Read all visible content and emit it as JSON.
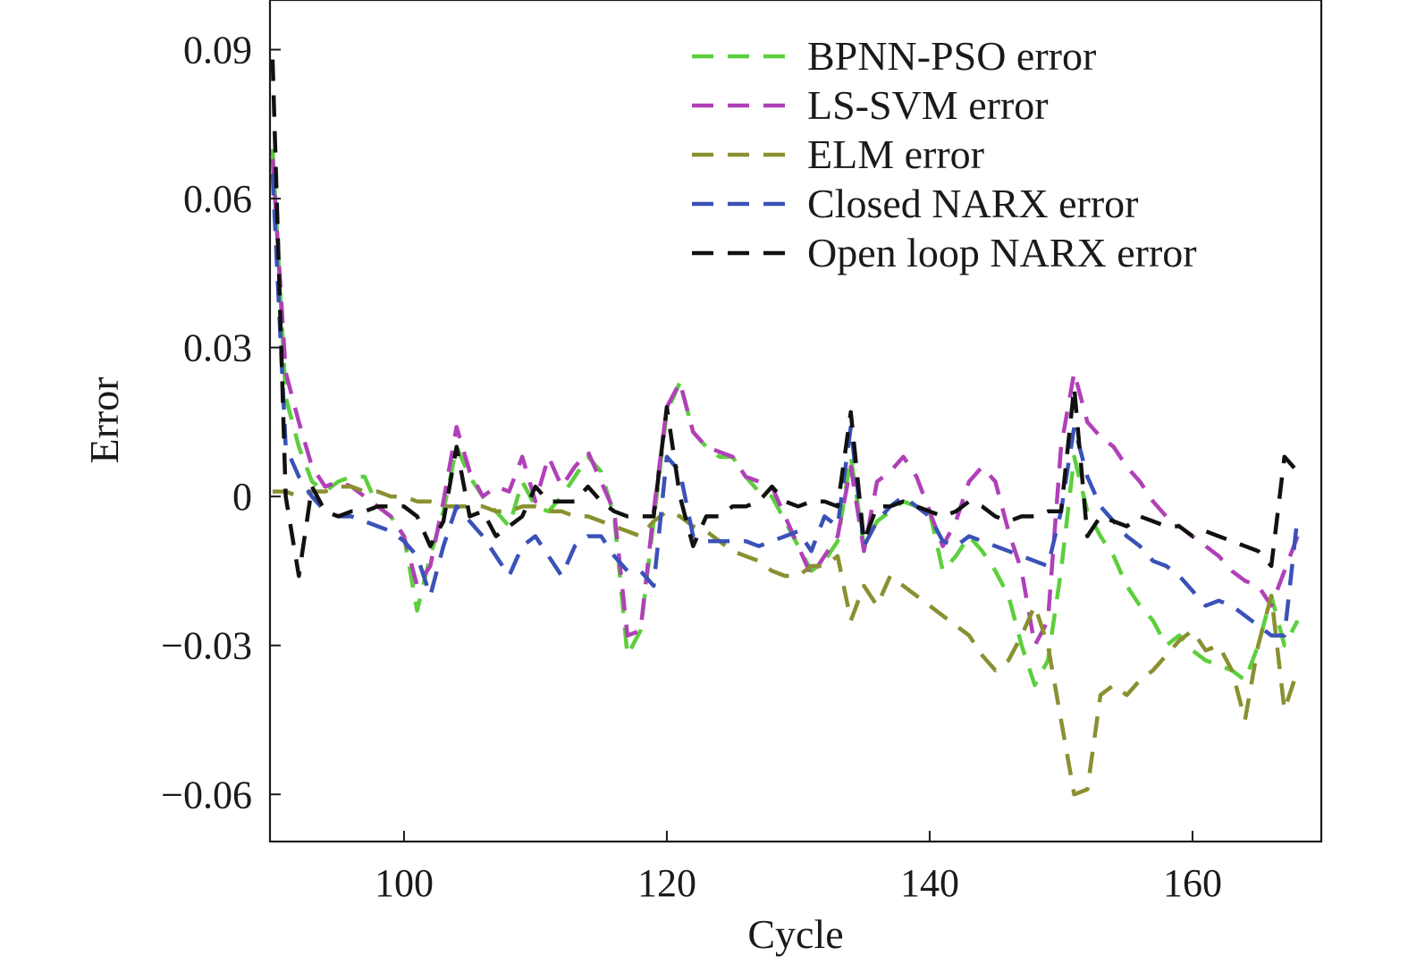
{
  "chart_data": {
    "type": "line",
    "title": "",
    "xlabel": "Cycle",
    "ylabel": "Error",
    "xlim": [
      89.8,
      169.8
    ],
    "ylim": [
      -0.0695,
      0.1
    ],
    "xticks": [
      100,
      120,
      140,
      160
    ],
    "xtick_labels": [
      "100",
      "120",
      "140",
      "160"
    ],
    "yticks": [
      0.09,
      0.06,
      0.03,
      0,
      -0.03,
      -0.06
    ],
    "ytick_labels": [
      "0.09",
      "0.06",
      "0.03",
      "0",
      "−0.03",
      "−0.06"
    ],
    "grid": false,
    "legend": "top-right",
    "line_style": "dashed",
    "x": [
      90,
      91,
      92,
      93,
      94,
      95,
      96,
      97,
      98,
      99,
      100,
      101,
      102,
      103,
      104,
      105,
      106,
      107,
      108,
      109,
      110,
      111,
      112,
      113,
      114,
      115,
      116,
      117,
      118,
      119,
      120,
      121,
      122,
      123,
      124,
      125,
      126,
      127,
      128,
      129,
      130,
      131,
      132,
      133,
      134,
      135,
      136,
      137,
      138,
      139,
      140,
      141,
      142,
      143,
      144,
      145,
      146,
      147,
      148,
      149,
      150,
      151,
      152,
      153,
      154,
      155,
      156,
      157,
      158,
      159,
      160,
      161,
      162,
      163,
      164,
      165,
      166,
      167,
      168
    ],
    "series": [
      {
        "name": "BPNN-PSO error",
        "color": "#5ccf3c",
        "values": [
          0.07,
          0.02,
          0.01,
          0.003,
          0.001,
          0.003,
          0.004,
          0.004,
          -0.002,
          -0.004,
          -0.008,
          -0.023,
          -0.012,
          -0.003,
          0.01,
          0.004,
          0.0,
          -0.003,
          -0.006,
          0.003,
          -0.002,
          -0.003,
          0.0,
          0.004,
          0.008,
          0.005,
          -0.004,
          -0.032,
          -0.027,
          -0.005,
          0.017,
          0.023,
          0.013,
          0.01,
          0.008,
          0.008,
          0.004,
          0.001,
          0.0,
          -0.005,
          -0.01,
          -0.015,
          -0.013,
          -0.009,
          0.008,
          -0.01,
          -0.005,
          -0.003,
          -0.001,
          -0.002,
          -0.003,
          -0.015,
          -0.012,
          -0.008,
          -0.011,
          -0.015,
          -0.02,
          -0.03,
          -0.038,
          -0.033,
          -0.015,
          0.008,
          -0.003,
          -0.008,
          -0.012,
          -0.018,
          -0.022,
          -0.025,
          -0.03,
          -0.028,
          -0.031,
          -0.033,
          -0.034,
          -0.035,
          -0.037,
          -0.03,
          -0.02,
          -0.03,
          -0.025
        ]
      },
      {
        "name": "LS-SVM error",
        "color": "#b040b8",
        "values": [
          0.068,
          0.025,
          0.015,
          0.006,
          0.002,
          0.003,
          0.002,
          0.0,
          -0.002,
          -0.004,
          -0.008,
          -0.018,
          -0.014,
          -0.001,
          0.014,
          0.005,
          0.0,
          0.002,
          0.001,
          0.008,
          -0.001,
          0.008,
          0.002,
          0.006,
          0.009,
          0.003,
          -0.003,
          -0.028,
          -0.027,
          -0.003,
          0.018,
          0.023,
          0.013,
          0.01,
          0.009,
          0.008,
          0.004,
          0.003,
          0.002,
          -0.004,
          -0.01,
          -0.016,
          -0.012,
          -0.008,
          0.006,
          -0.011,
          0.003,
          0.005,
          0.008,
          0.004,
          -0.003,
          -0.01,
          -0.005,
          0.003,
          0.006,
          0.003,
          -0.007,
          -0.015,
          -0.03,
          -0.025,
          0.01,
          0.025,
          0.015,
          0.012,
          0.01,
          0.006,
          0.003,
          -0.001,
          -0.004,
          -0.006,
          -0.008,
          -0.01,
          -0.012,
          -0.015,
          -0.017,
          -0.018,
          -0.022,
          -0.015,
          -0.008
        ]
      },
      {
        "name": "ELM error",
        "color": "#8a9030",
        "values": [
          0.001,
          0.001,
          0.0,
          0.001,
          0.001,
          0.002,
          0.002,
          0.001,
          0.001,
          0.0,
          0.0,
          -0.001,
          -0.001,
          -0.002,
          -0.002,
          -0.002,
          -0.002,
          -0.003,
          -0.003,
          -0.002,
          -0.002,
          -0.003,
          -0.003,
          -0.004,
          -0.004,
          -0.005,
          -0.006,
          -0.007,
          -0.008,
          -0.005,
          -0.003,
          -0.004,
          -0.006,
          -0.007,
          -0.009,
          -0.011,
          -0.012,
          -0.013,
          -0.015,
          -0.016,
          -0.016,
          -0.014,
          -0.014,
          -0.012,
          -0.025,
          -0.018,
          -0.022,
          -0.016,
          -0.018,
          -0.02,
          -0.022,
          -0.024,
          -0.026,
          -0.028,
          -0.032,
          -0.035,
          -0.033,
          -0.028,
          -0.022,
          -0.03,
          -0.045,
          -0.06,
          -0.059,
          -0.04,
          -0.038,
          -0.04,
          -0.037,
          -0.035,
          -0.032,
          -0.029,
          -0.027,
          -0.031,
          -0.03,
          -0.035,
          -0.045,
          -0.03,
          -0.02,
          -0.043,
          -0.035
        ]
      },
      {
        "name": "Closed NARX error",
        "color": "#3a52b8",
        "values": [
          0.065,
          0.01,
          0.004,
          0.0,
          -0.003,
          -0.004,
          -0.004,
          -0.005,
          -0.006,
          -0.007,
          -0.009,
          -0.012,
          -0.02,
          -0.01,
          -0.002,
          -0.005,
          -0.008,
          -0.012,
          -0.016,
          -0.01,
          -0.008,
          -0.012,
          -0.016,
          -0.01,
          -0.008,
          -0.008,
          -0.012,
          -0.015,
          -0.015,
          -0.018,
          0.008,
          0.005,
          -0.008,
          -0.009,
          -0.009,
          -0.009,
          -0.009,
          -0.01,
          -0.009,
          -0.008,
          -0.007,
          -0.011,
          -0.004,
          -0.006,
          0.014,
          -0.01,
          -0.005,
          -0.002,
          0.0,
          -0.002,
          -0.004,
          -0.009,
          -0.01,
          -0.008,
          -0.009,
          -0.01,
          -0.011,
          -0.012,
          -0.013,
          -0.014,
          -0.003,
          0.014,
          0.004,
          -0.002,
          -0.005,
          -0.008,
          -0.01,
          -0.013,
          -0.014,
          -0.016,
          -0.019,
          -0.022,
          -0.021,
          -0.022,
          -0.024,
          -0.026,
          -0.028,
          -0.028,
          -0.004
        ]
      },
      {
        "name": "Open loop NARX error",
        "color": "#111111",
        "values": [
          0.088,
          0.0,
          -0.016,
          0.002,
          -0.003,
          -0.004,
          -0.003,
          -0.003,
          -0.002,
          -0.002,
          -0.002,
          -0.004,
          -0.01,
          -0.005,
          0.01,
          -0.004,
          -0.003,
          -0.008,
          -0.006,
          -0.004,
          0.002,
          -0.001,
          -0.001,
          -0.001,
          0.002,
          -0.001,
          -0.003,
          -0.004,
          -0.004,
          -0.004,
          0.018,
          0.0,
          -0.01,
          -0.004,
          -0.004,
          -0.002,
          -0.002,
          -0.001,
          0.002,
          -0.001,
          -0.002,
          -0.001,
          -0.001,
          -0.002,
          0.017,
          -0.009,
          -0.002,
          -0.002,
          -0.001,
          -0.002,
          -0.003,
          -0.004,
          -0.003,
          -0.001,
          -0.002,
          -0.004,
          -0.005,
          -0.004,
          -0.004,
          -0.003,
          -0.003,
          0.022,
          -0.008,
          -0.004,
          -0.005,
          -0.006,
          -0.004,
          -0.005,
          -0.006,
          -0.006,
          -0.008,
          -0.007,
          -0.008,
          -0.009,
          -0.01,
          -0.011,
          -0.014,
          0.008,
          0.005
        ]
      }
    ]
  }
}
